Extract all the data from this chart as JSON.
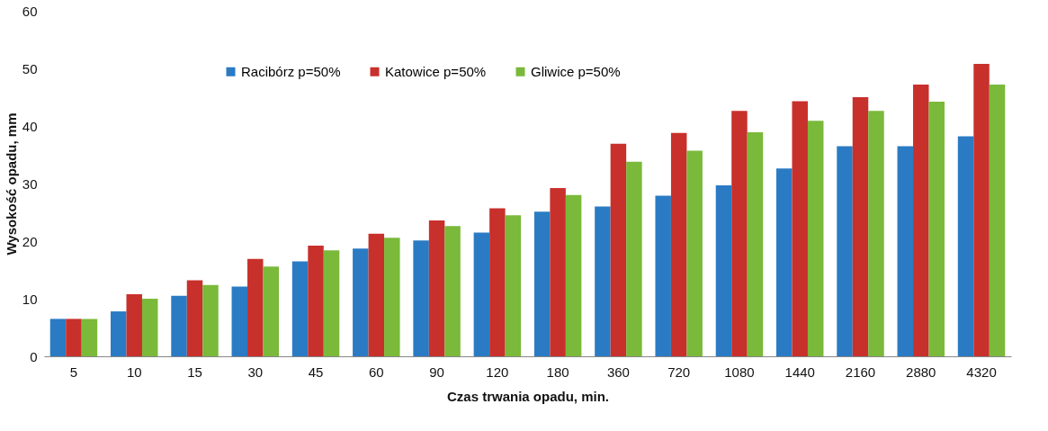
{
  "chart_data": {
    "type": "bar",
    "xlabel": "Czas trwania opadu, min.",
    "ylabel": "Wysokość opadu, mm",
    "categories": [
      "5",
      "10",
      "15",
      "30",
      "45",
      "60",
      "90",
      "120",
      "180",
      "360",
      "720",
      "1080",
      "1440",
      "2160",
      "2880",
      "4320"
    ],
    "series": [
      {
        "name": "Racibórz p=50%",
        "color": "#2a7bc4",
        "values": [
          6.5,
          7.8,
          10.5,
          12.1,
          16.5,
          18.7,
          20.1,
          21.5,
          25.1,
          26.0,
          27.9,
          29.7,
          32.6,
          36.5,
          36.5,
          38.2
        ]
      },
      {
        "name": "Katowice p=50%",
        "color": "#c8302c",
        "values": [
          6.5,
          10.8,
          13.2,
          16.9,
          19.2,
          21.3,
          23.6,
          25.7,
          29.2,
          36.9,
          38.8,
          42.6,
          44.3,
          45.0,
          47.2,
          50.8
        ]
      },
      {
        "name": "Gliwice p=50%",
        "color": "#7ab93a",
        "values": [
          6.5,
          10.0,
          12.4,
          15.6,
          18.4,
          20.6,
          22.6,
          24.5,
          28.0,
          33.8,
          35.7,
          38.9,
          40.9,
          42.6,
          44.2,
          47.2
        ]
      }
    ],
    "ylim": [
      0,
      60
    ],
    "yticks": [
      0,
      10,
      20,
      30,
      40,
      50,
      60
    ],
    "grid": false,
    "legend": "top left"
  }
}
